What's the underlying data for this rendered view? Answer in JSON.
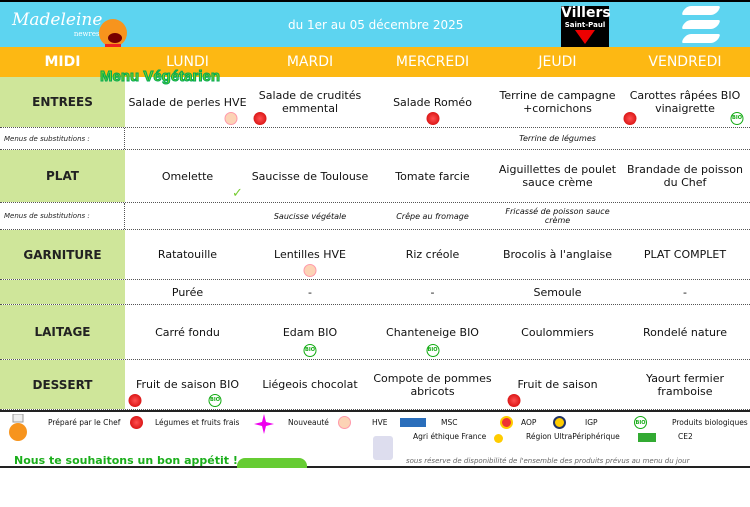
{
  "header": {
    "brand": "Madeleine",
    "brand_sub": "newrest",
    "dates": "du 1er au 05 décembre 2025",
    "town_line1": "Villers",
    "town_line2": "Saint-Paul",
    "menu_type": "Menu Végétarien"
  },
  "days": [
    "MIDI",
    "LUNDI",
    "MARDI",
    "MERCREDI",
    "JEUDI",
    "VENDREDI"
  ],
  "rows": [
    {
      "label": "ENTREES",
      "items": [
        "Salade de perles HVE",
        "Salade de crudités emmental",
        "Salade Roméo",
        "Terrine de campagne +cornichons",
        "Carottes râpées BIO vinaigrette"
      ]
    },
    {
      "label": "Menus de substitutions :",
      "items": [
        "",
        "",
        "",
        "Terrine de légumes",
        ""
      ]
    },
    {
      "label": "PLAT",
      "items": [
        "Omelette",
        "Saucisse de Toulouse",
        "Tomate farcie",
        "Aiguillettes de poulet sauce crème",
        "Brandade de poisson du Chef"
      ]
    },
    {
      "label": "Menus de substitutions :",
      "items": [
        "",
        "Saucisse végétale",
        "Crêpe au fromage",
        "Fricassé de poisson sauce crème",
        ""
      ]
    },
    {
      "label": "GARNITURE",
      "items": [
        "Ratatouille",
        "Lentilles HVE",
        "Riz créole",
        "Brocolis à l'anglaise",
        "PLAT COMPLET"
      ]
    },
    {
      "label": "",
      "items": [
        "Purée",
        "-",
        "-",
        "Semoule",
        "-"
      ]
    },
    {
      "label": "LAITAGE",
      "items": [
        "Carré fondu",
        "Edam BIO",
        "Chanteneige BIO",
        "Coulommiers",
        "Rondelé nature"
      ]
    },
    {
      "label": "DESSERT",
      "items": [
        "Fruit de saison BIO",
        "Liégeois chocolat",
        "Compote de pommes abricots",
        "Fruit de saison",
        "Yaourt fermier framboise"
      ]
    }
  ],
  "legend": {
    "chef": "Préparé par le Chef",
    "fresh": "Légumes et fruits frais",
    "new": "Nouveauté",
    "hve": "HVE",
    "msc": "MSC",
    "aop": "AOP",
    "igp": "IGP",
    "bio": "Produits biologiques",
    "agri": "Agri éthique France",
    "rup": "Région UltraPériphérique",
    "ce2": "CE2",
    "bio_badge": "BIO"
  },
  "footer": {
    "message": "Nous te souhaitons un bon appétit !",
    "disclaimer": "sous réserve de disponibilité de l'ensemble des produits prévus au menu du jour"
  },
  "colors": {
    "header": "#5dd4f0",
    "days_bar": "#fdb813",
    "label_col": "#cfe69a",
    "message": "#1aae1a"
  }
}
